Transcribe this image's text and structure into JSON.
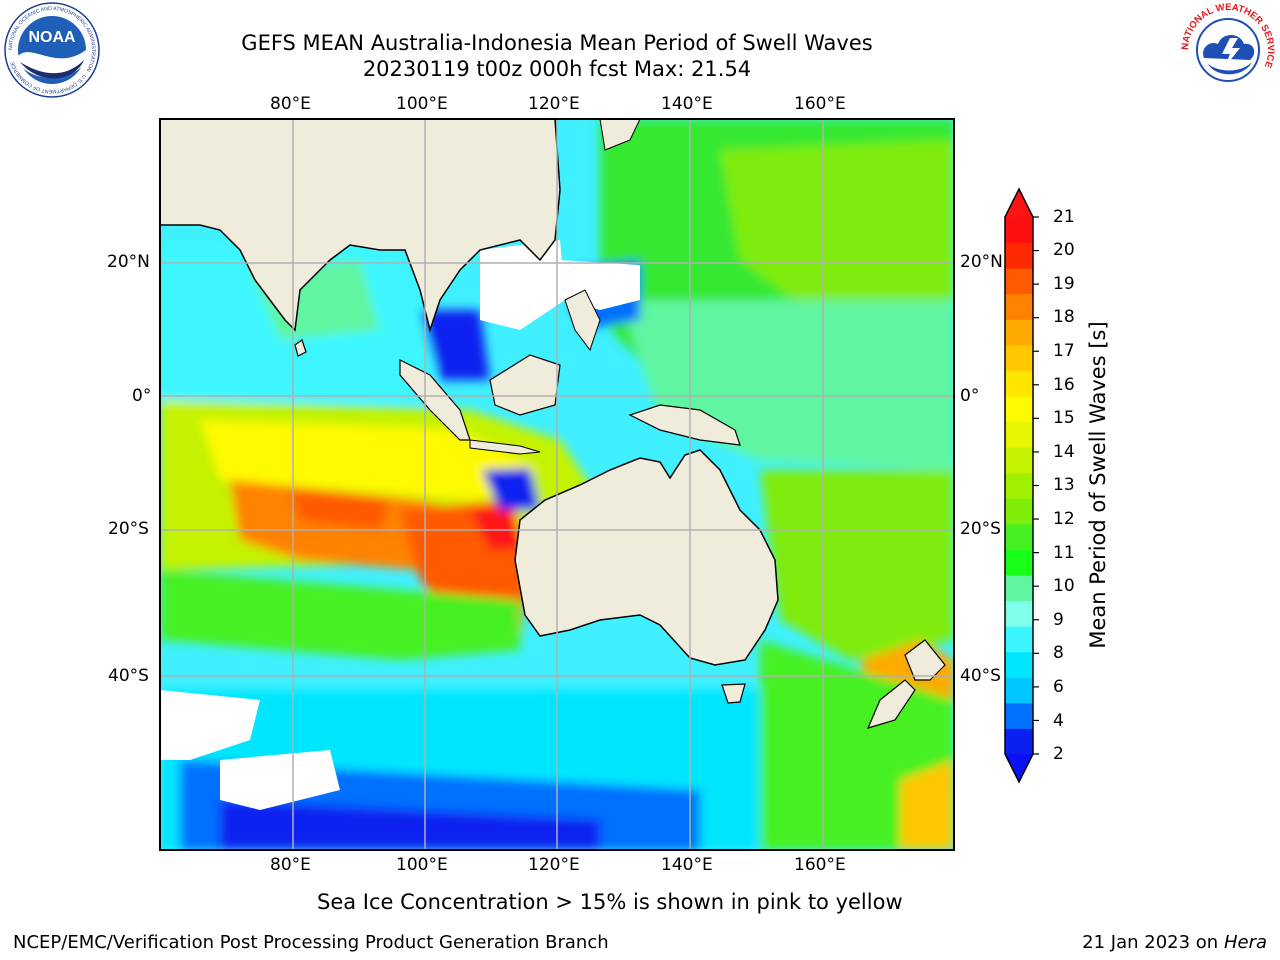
{
  "header": {
    "title_line1": "GEFS MEAN Australia-Indonesia Mean Period of Swell Waves",
    "title_line2": "20230119 t00z 000h fcst   Max: 21.54"
  },
  "logos": {
    "noaa_text": "NOAA",
    "noaa_ring": "NATIONAL OCEANIC AND ATMOSPHERIC ADMINISTRATION · U.S. DEPARTMENT OF COMMERCE",
    "nws_ring": "NATIONAL WEATHER SERVICE"
  },
  "map": {
    "lon_ticks": [
      "80°E",
      "100°E",
      "120°E",
      "140°E",
      "160°E"
    ],
    "lat_ticks": [
      "20°N",
      "0°",
      "20°S",
      "40°S"
    ],
    "land_color": "#efecdc",
    "grid_color": "#b0b0b0",
    "ice_color": "#ffffff"
  },
  "colorbar": {
    "title": "Mean Period of Swell Waves [s]",
    "labels": [
      "21",
      "20",
      "19",
      "18",
      "17",
      "16",
      "15",
      "14",
      "13",
      "12",
      "11",
      "10",
      "9",
      "8",
      "6",
      "4",
      "2"
    ],
    "colors_low_to_high": [
      "#0a20f0",
      "#0070ff",
      "#00c8ff",
      "#00e6ff",
      "#3cf6ff",
      "#80ffea",
      "#60f5a0",
      "#18ff18",
      "#46f022",
      "#7fec0a",
      "#a0f000",
      "#c4f200",
      "#e6f500",
      "#fffa00",
      "#ffe600",
      "#ffc800",
      "#ffaa00",
      "#ff8200",
      "#ff5a00",
      "#ff2a00",
      "#ff1010"
    ],
    "under_color": "#0a10f8",
    "over_color": "#ff1414"
  },
  "footer": {
    "note": "Sea Ice Concentration > 15% is shown in pink to yellow",
    "left": "NCEP/EMC/Verification Post Processing Product Generation Branch",
    "right_date": "21 Jan 2023 on",
    "right_host": "Hera"
  }
}
